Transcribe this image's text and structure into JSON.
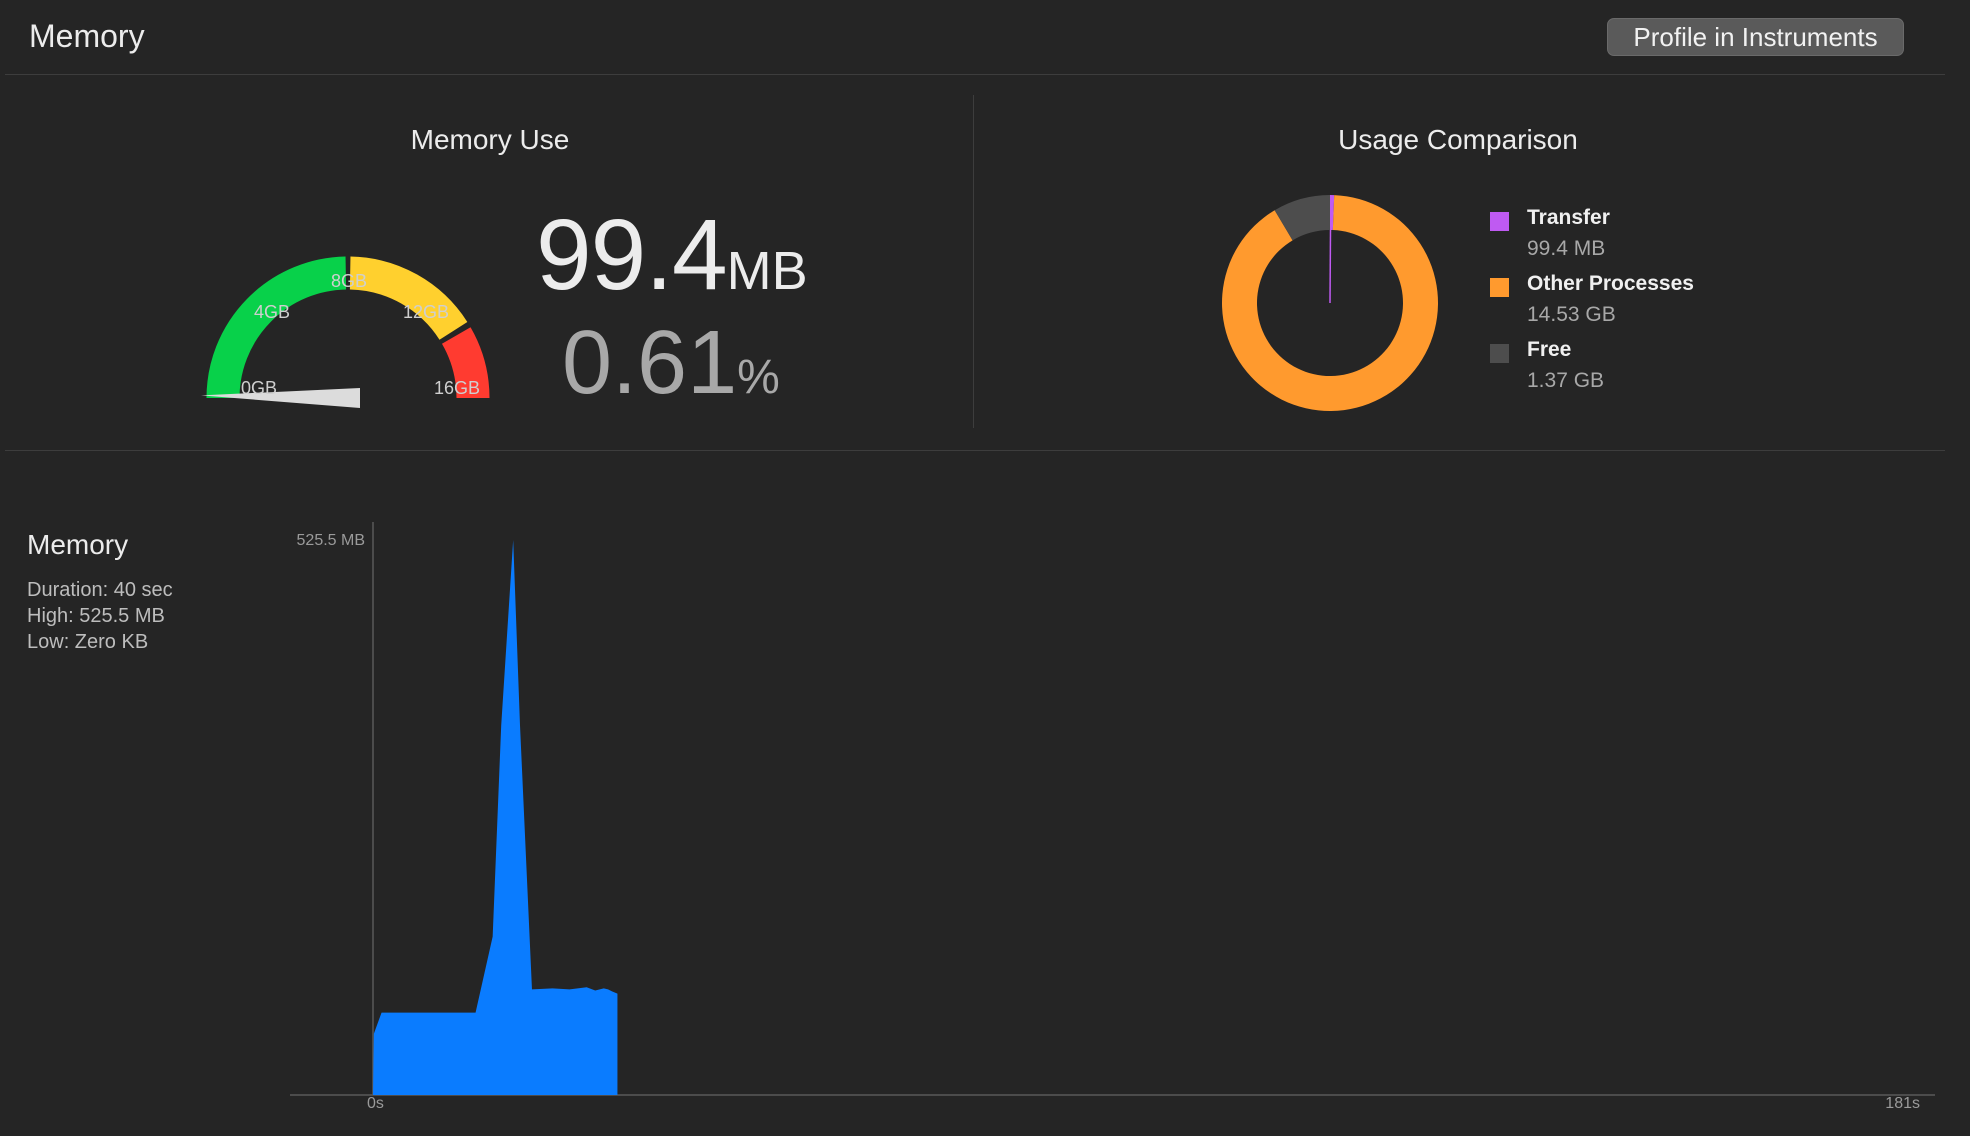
{
  "header": {
    "title": "Memory",
    "profile_button": "Profile in Instruments"
  },
  "gauge": {
    "title": "Memory Use",
    "tick_labels": [
      "0GB",
      "4GB",
      "8GB",
      "12GB",
      "16GB"
    ],
    "max_gb": 16,
    "used_fraction": 0.0061,
    "colors": {
      "green": "#08d14a",
      "yellow": "#ffd02e",
      "red": "#ff3b30"
    }
  },
  "summary": {
    "value": "99.4",
    "value_unit": "MB",
    "percent": "0.61",
    "percent_unit": "%"
  },
  "comparison": {
    "title": "Usage Comparison",
    "legend": [
      {
        "name": "Transfer",
        "value": "99.4 MB",
        "color": "#bf5af2"
      },
      {
        "name": "Other Processes",
        "value": "14.53 GB",
        "color": "#ff9a2e"
      },
      {
        "name": "Free",
        "value": "1.37 GB",
        "color": "#4d4d4d"
      }
    ]
  },
  "memory_panel": {
    "title": "Memory",
    "duration": "Duration: 40 sec",
    "high": "High: 525.5 MB",
    "low": "Low: Zero KB"
  },
  "chart_data": [
    {
      "type": "pie",
      "title": "Usage Comparison",
      "labels": [
        "Transfer",
        "Other Processes",
        "Free"
      ],
      "values": [
        0.0994,
        14.53,
        1.37
      ],
      "unit": "GB",
      "colors": [
        "#bf5af2",
        "#ff9a2e",
        "#4d4d4d"
      ]
    },
    {
      "type": "area",
      "title": "Memory",
      "y_axis_max_label": "525.5 MB",
      "x_start_label": "0s",
      "x_end_label": "181s",
      "xlim": [
        0,
        181
      ],
      "ylim": [
        0,
        525.5
      ],
      "x": [
        0,
        0.1,
        1,
        2,
        10,
        12,
        14,
        15,
        16.4,
        17.2,
        18.6,
        21,
        23,
        25,
        26,
        27,
        27.5,
        28,
        28.6
      ],
      "y": [
        0,
        58,
        78,
        78,
        78,
        78,
        150,
        350,
        525.5,
        350,
        100,
        101,
        100,
        102,
        99,
        101,
        100,
        98,
        96
      ],
      "color": "#0a7cff"
    }
  ]
}
